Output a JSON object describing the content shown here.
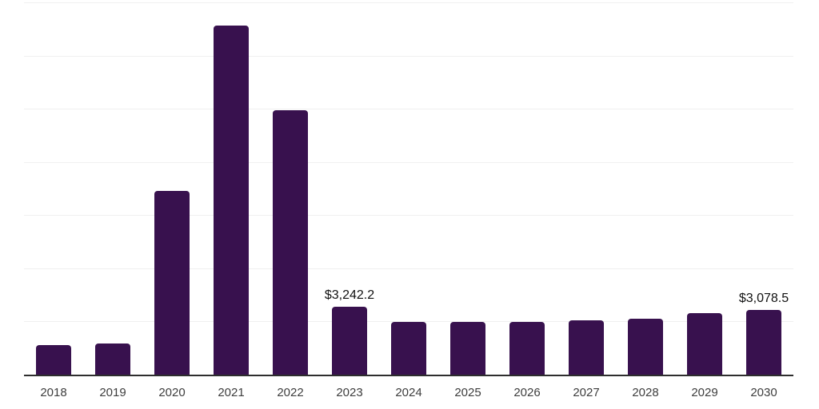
{
  "colors": {
    "background": "#ffffff",
    "bar": "#38114E",
    "grid_line": "#f0f0f0",
    "axis_line": "#2e2e2e",
    "tick_label": "#3d3d3d",
    "data_label": "#111111"
  },
  "chart_data": {
    "type": "bar",
    "title": "",
    "xlabel": "",
    "ylabel": "",
    "categories": [
      "2018",
      "2019",
      "2020",
      "2021",
      "2022",
      "2023",
      "2024",
      "2025",
      "2026",
      "2027",
      "2028",
      "2029",
      "2030"
    ],
    "values": [
      1420,
      1495,
      8670,
      16450,
      12460,
      3242.2,
      2520,
      2520,
      2525,
      2600,
      2680,
      2915,
      3078.5
    ],
    "bar_labels": [
      "",
      "",
      "",
      "",
      "",
      "$3,242.2",
      "",
      "",
      "",
      "",
      "",
      "",
      "$3,078.5"
    ],
    "ylim": [
      0,
      17500
    ],
    "grid_interval": 2500,
    "grid": "horizontal-only",
    "legend": "none",
    "y_axis_tick_labels_visible": false
  }
}
